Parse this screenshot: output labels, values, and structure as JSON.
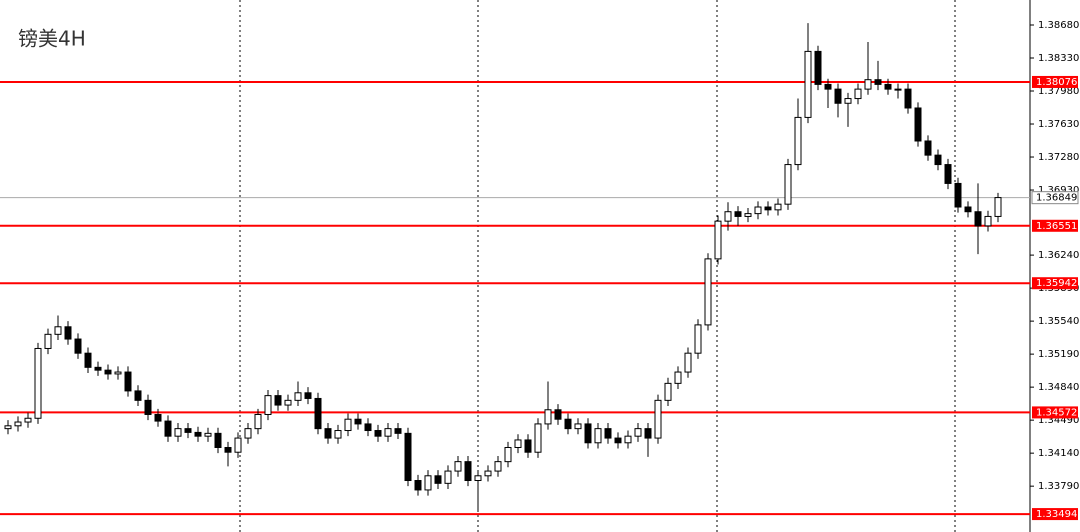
{
  "chart_data": {
    "type": "candlestick",
    "title": "镑美4H",
    "open": [
      1.344,
      1.3443,
      1.3447,
      1.3451,
      1.3525,
      1.354,
      1.3548,
      1.3535,
      1.352,
      1.3505,
      1.3502,
      1.3498,
      1.35,
      1.348,
      1.347,
      1.3455,
      1.3448,
      1.3432,
      1.344,
      1.3436,
      1.3432,
      1.3435,
      1.342,
      1.3415,
      1.343,
      1.344,
      1.3455,
      1.3475,
      1.3465,
      1.347,
      1.3478,
      1.3472,
      1.344,
      1.343,
      1.3438,
      1.345,
      1.3445,
      1.3438,
      1.3432,
      1.344,
      1.3435,
      1.3385,
      1.3375,
      1.339,
      1.3382,
      1.3395,
      1.3405,
      1.3385,
      1.339,
      1.3395,
      1.3405,
      1.342,
      1.3428,
      1.3415,
      1.3445,
      1.346,
      1.345,
      1.344,
      1.3445,
      1.3425,
      1.344,
      1.343,
      1.3425,
      1.3432,
      1.344,
      1.343,
      1.347,
      1.3488,
      1.35,
      1.352,
      1.355,
      1.362,
      1.366,
      1.367,
      1.3665,
      1.3668,
      1.3675,
      1.3672,
      1.3678,
      1.372,
      1.377,
      1.384,
      1.3805,
      1.38,
      1.3785,
      1.379,
      1.38,
      1.381,
      1.3805,
      1.38,
      1.38,
      1.378,
      1.3745,
      1.373,
      1.372,
      1.37,
      1.3675,
      1.367,
      1.3655,
      1.3665
    ],
    "high": [
      1.3449,
      1.3453,
      1.3457,
      1.3531,
      1.3546,
      1.356,
      1.3554,
      1.3541,
      1.3526,
      1.3511,
      1.3508,
      1.3506,
      1.3506,
      1.3486,
      1.3476,
      1.3461,
      1.3454,
      1.3446,
      1.3446,
      1.3442,
      1.3441,
      1.3441,
      1.3426,
      1.3436,
      1.3446,
      1.3461,
      1.3481,
      1.3481,
      1.3476,
      1.349,
      1.3484,
      1.3478,
      1.3446,
      1.3444,
      1.3456,
      1.3456,
      1.3451,
      1.3444,
      1.3446,
      1.3446,
      1.3441,
      1.3391,
      1.3396,
      1.3396,
      1.3401,
      1.3411,
      1.3411,
      1.3396,
      1.3401,
      1.3411,
      1.3426,
      1.3434,
      1.3434,
      1.3451,
      1.349,
      1.3466,
      1.3456,
      1.3451,
      1.3451,
      1.3446,
      1.3446,
      1.3436,
      1.3438,
      1.3446,
      1.3446,
      1.3476,
      1.3494,
      1.3506,
      1.3526,
      1.3556,
      1.3626,
      1.3666,
      1.368,
      1.3676,
      1.3674,
      1.3681,
      1.3681,
      1.3684,
      1.3726,
      1.379,
      1.387,
      1.3846,
      1.3811,
      1.3806,
      1.3796,
      1.3806,
      1.385,
      1.383,
      1.3811,
      1.3806,
      1.3806,
      1.3786,
      1.3751,
      1.3736,
      1.3726,
      1.3706,
      1.3681,
      1.37,
      1.3671,
      1.369
    ],
    "low": [
      1.3434,
      1.3437,
      1.3441,
      1.3445,
      1.3519,
      1.3534,
      1.3529,
      1.3514,
      1.3499,
      1.3496,
      1.3492,
      1.3492,
      1.3474,
      1.3464,
      1.3449,
      1.3442,
      1.3426,
      1.3426,
      1.343,
      1.3426,
      1.3426,
      1.3414,
      1.34,
      1.3409,
      1.3424,
      1.3434,
      1.3449,
      1.3459,
      1.3459,
      1.3464,
      1.3466,
      1.3434,
      1.3424,
      1.3424,
      1.3432,
      1.3439,
      1.3432,
      1.3426,
      1.3426,
      1.3429,
      1.3379,
      1.3369,
      1.3369,
      1.3376,
      1.3376,
      1.3389,
      1.3379,
      1.3352,
      1.3384,
      1.3389,
      1.3399,
      1.3414,
      1.3409,
      1.3409,
      1.3439,
      1.3444,
      1.3434,
      1.3434,
      1.3419,
      1.3419,
      1.3424,
      1.3419,
      1.3419,
      1.3426,
      1.341,
      1.3424,
      1.3464,
      1.3482,
      1.3494,
      1.3514,
      1.3544,
      1.3614,
      1.365,
      1.3655,
      1.3659,
      1.3662,
      1.3666,
      1.3666,
      1.3672,
      1.3714,
      1.3764,
      1.3799,
      1.378,
      1.377,
      1.376,
      1.3784,
      1.3794,
      1.3799,
      1.3794,
      1.379,
      1.3774,
      1.3739,
      1.3724,
      1.3714,
      1.3694,
      1.3669,
      1.3664,
      1.3625,
      1.3649,
      1.3659
    ],
    "close": [
      1.3443,
      1.3447,
      1.3451,
      1.3525,
      1.354,
      1.3548,
      1.3535,
      1.352,
      1.3505,
      1.3502,
      1.3498,
      1.35,
      1.348,
      1.347,
      1.3455,
      1.3448,
      1.3432,
      1.344,
      1.3436,
      1.3432,
      1.3435,
      1.342,
      1.3415,
      1.343,
      1.344,
      1.3455,
      1.3475,
      1.3465,
      1.347,
      1.3478,
      1.3472,
      1.344,
      1.343,
      1.3438,
      1.345,
      1.3445,
      1.3438,
      1.3432,
      1.344,
      1.3435,
      1.3385,
      1.3375,
      1.339,
      1.3382,
      1.3395,
      1.3405,
      1.3385,
      1.339,
      1.3395,
      1.3405,
      1.342,
      1.3428,
      1.3415,
      1.3445,
      1.346,
      1.345,
      1.344,
      1.3445,
      1.3425,
      1.344,
      1.343,
      1.3425,
      1.3432,
      1.344,
      1.343,
      1.347,
      1.3488,
      1.35,
      1.352,
      1.355,
      1.362,
      1.366,
      1.367,
      1.3665,
      1.3668,
      1.3675,
      1.3672,
      1.3678,
      1.372,
      1.377,
      1.384,
      1.3805,
      1.38,
      1.3785,
      1.379,
      1.38,
      1.381,
      1.3805,
      1.38,
      1.38,
      1.378,
      1.3745,
      1.373,
      1.372,
      1.37,
      1.3675,
      1.367,
      1.3655,
      1.3665,
      1.3685
    ],
    "ylim": [
      1.33304,
      1.38945
    ],
    "yticks": [
      {
        "value": 1.3868,
        "label": "1.38680"
      },
      {
        "value": 1.3833,
        "label": "1.38330"
      },
      {
        "value": 1.3798,
        "label": "1.37980"
      },
      {
        "value": 1.3763,
        "label": "1.37630"
      },
      {
        "value": 1.3728,
        "label": "1.37280"
      },
      {
        "value": 1.3693,
        "label": "1.36930"
      },
      {
        "value": 1.3624,
        "label": "1.36240"
      },
      {
        "value": 1.3589,
        "label": "1.35890"
      },
      {
        "value": 1.3554,
        "label": "1.35540"
      },
      {
        "value": 1.3519,
        "label": "1.35190"
      },
      {
        "value": 1.3484,
        "label": "1.34840"
      },
      {
        "value": 1.3449,
        "label": "1.34490"
      },
      {
        "value": 1.3414,
        "label": "1.34140"
      },
      {
        "value": 1.3379,
        "label": "1.33790"
      }
    ],
    "levels": [
      {
        "value": 1.38076,
        "label": "1.38076"
      },
      {
        "value": 1.36551,
        "label": "1.36551"
      },
      {
        "value": 1.35942,
        "label": "1.35942"
      },
      {
        "value": 1.34572,
        "label": "1.34572"
      },
      {
        "value": 1.33494,
        "label": "1.33494"
      }
    ],
    "level_color": "#ff0000",
    "current_price": {
      "value": 1.36849,
      "label": "1.36849"
    }
  }
}
